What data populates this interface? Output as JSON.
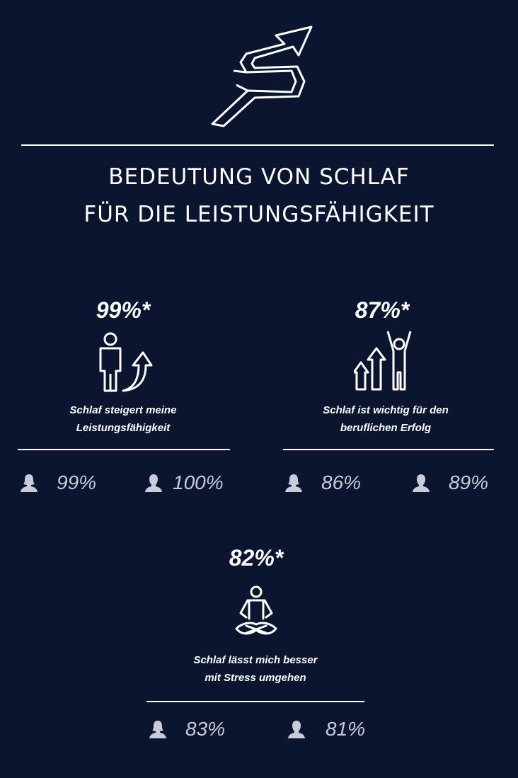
{
  "title": {
    "line1": "BEDEUTUNG VON SCHLAF",
    "line2": "FÜR DIE LEISTUNGSFÄHIGKEIT"
  },
  "blocks": [
    {
      "percent": "99%*",
      "caption_line1": "Schlaf steigert meine",
      "caption_line2": "Leistungsfähigkeit",
      "female_percent": "99%",
      "male_percent": "100%",
      "icon": "person-up-arrow-icon"
    },
    {
      "percent": "87%*",
      "caption_line1": "Schlaf ist wichtig für den",
      "caption_line2": "beruflichen Erfolg",
      "female_percent": "86%",
      "male_percent": "89%",
      "icon": "cheering-person-arrows-icon"
    },
    {
      "percent": "82%*",
      "caption_line1": "Schlaf lässt mich besser",
      "caption_line2": "mit Stress umgehen",
      "female_percent": "83%",
      "male_percent": "81%",
      "icon": "meditating-person-icon"
    }
  ],
  "colors": {
    "background": "#0b1530",
    "text": "#ffffff",
    "stat_text": "#c9ccd6"
  }
}
